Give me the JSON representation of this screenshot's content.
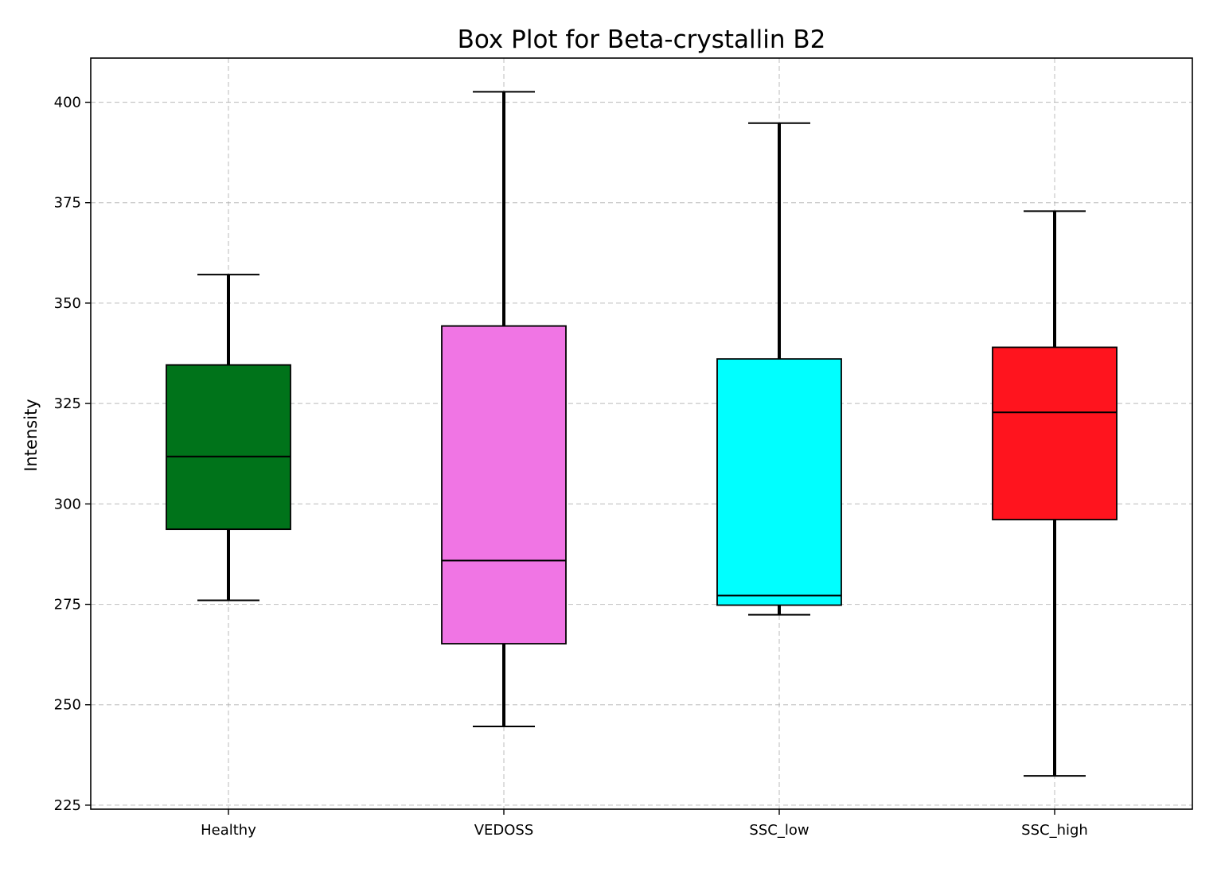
{
  "chart_data": {
    "type": "box",
    "title": "Box Plot for Beta-crystallin B2",
    "xlabel": "",
    "ylabel": "Intensity",
    "ylim": [
      224,
      411
    ],
    "yticks": [
      225,
      250,
      275,
      300,
      325,
      350,
      375,
      400
    ],
    "grid": true,
    "categories": [
      "Healthy",
      "VEDOSS",
      "SSC_low",
      "SSC_high"
    ],
    "boxes": [
      {
        "category": "Healthy",
        "whisker_low": 276,
        "q1": 293.7,
        "median": 311.8,
        "q3": 334.6,
        "whisker_high": 357.1,
        "color": "#00731a"
      },
      {
        "category": "VEDOSS",
        "whisker_low": 244.6,
        "q1": 265.2,
        "median": 285.9,
        "q3": 344.3,
        "whisker_high": 402.6,
        "color": "#f075e4"
      },
      {
        "category": "SSC_low",
        "whisker_low": 272.4,
        "q1": 274.8,
        "median": 277.2,
        "q3": 336.1,
        "whisker_high": 394.8,
        "color": "#00ffff"
      },
      {
        "category": "SSC_high",
        "whisker_low": 232.3,
        "q1": 296.1,
        "median": 322.8,
        "q3": 339,
        "whisker_high": 372.9,
        "color": "#ff141e"
      }
    ]
  }
}
